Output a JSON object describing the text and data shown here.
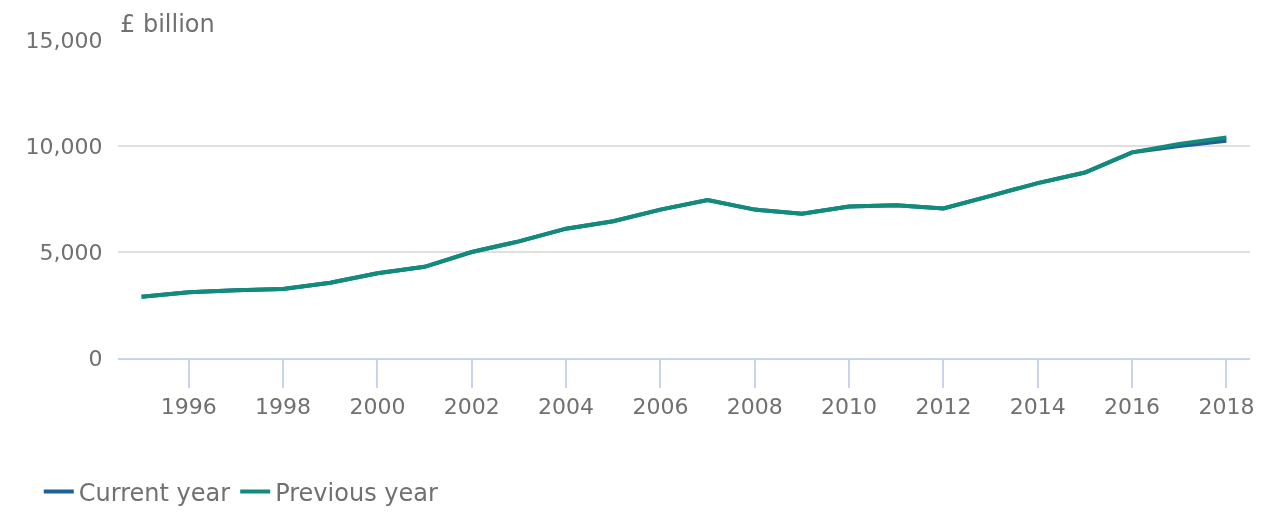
{
  "chart_data": {
    "type": "line",
    "ylabel": "£ billion",
    "x": [
      1995,
      1996,
      1997,
      1998,
      1999,
      2000,
      2001,
      2002,
      2003,
      2004,
      2005,
      2006,
      2007,
      2008,
      2009,
      2010,
      2011,
      2012,
      2013,
      2014,
      2015,
      2016,
      2017,
      2018
    ],
    "series": [
      {
        "name": "Current year",
        "color": "#206095",
        "values": [
          2890,
          3100,
          3200,
          3250,
          3550,
          4000,
          4300,
          5000,
          5500,
          6100,
          6450,
          7000,
          7450,
          7000,
          6800,
          7150,
          7200,
          7050,
          7650,
          8250,
          8750,
          9700,
          10000,
          10250
        ]
      },
      {
        "name": "Previous year",
        "color": "#118c7b",
        "values": [
          2890,
          3100,
          3200,
          3250,
          3550,
          4000,
          4300,
          5000,
          5500,
          6100,
          6450,
          7000,
          7450,
          7000,
          6800,
          7150,
          7200,
          7050,
          7650,
          8250,
          8750,
          9700,
          10100,
          10400
        ]
      }
    ],
    "xlim": [
      1994.5,
      2018.5
    ],
    "xticks": [
      1996,
      1998,
      2000,
      2002,
      2004,
      2006,
      2008,
      2010,
      2012,
      2014,
      2016,
      2018
    ],
    "ylim": [
      0,
      15000
    ],
    "yticks": [
      {
        "value": 0,
        "label": "0"
      },
      {
        "value": 5000,
        "label": "5,000"
      },
      {
        "value": 10000,
        "label": "10,000"
      },
      {
        "value": 15000,
        "label": "15,000"
      }
    ],
    "grid": "y",
    "legend": "bottom left",
    "marker": "none",
    "line_style": "solid"
  }
}
